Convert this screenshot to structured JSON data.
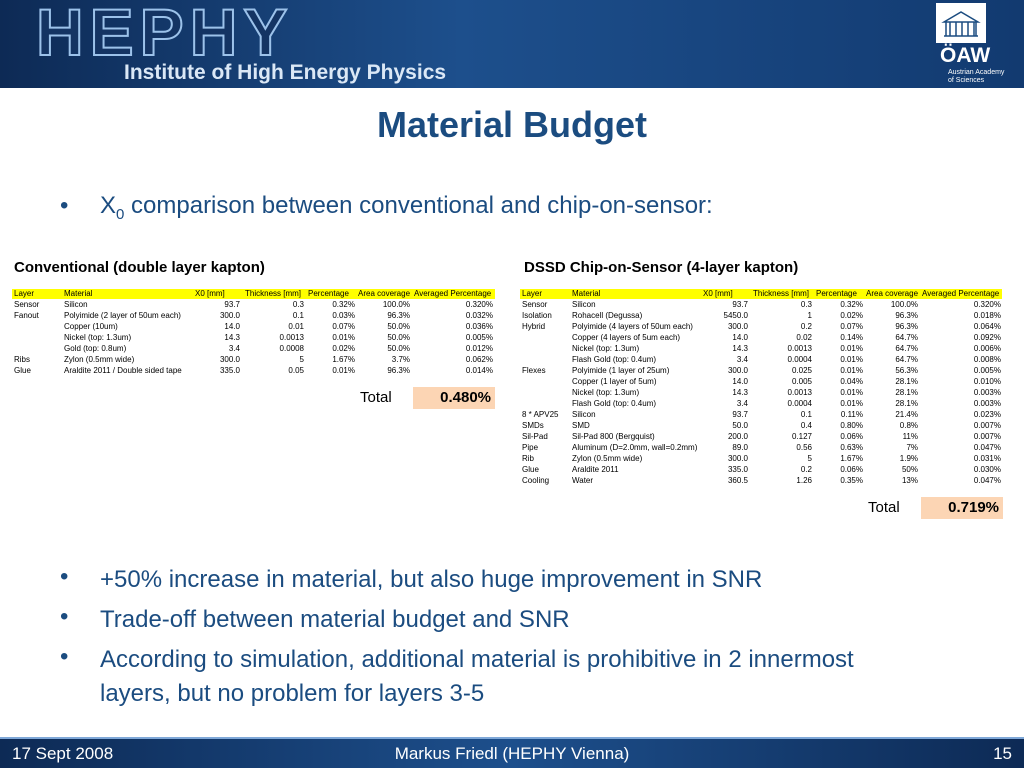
{
  "header": {
    "logo": "HEPHY",
    "subtitle": "Institute of High Energy Physics",
    "org_logo": "ÖAW",
    "org_name_lines": [
      "Austrian Academy",
      "of Sciences"
    ]
  },
  "title": "Material Budget",
  "intro_bullet": {
    "symbol": "X",
    "subscript": "0",
    "text": "comparison between conventional and chip-on-sensor:"
  },
  "tables": [
    {
      "title": "Conventional (double layer kapton)",
      "columns": [
        "Layer",
        "Material",
        "X0 [mm]",
        "Thickness [mm]",
        "Percentage",
        "Area coverage",
        "Averaged Percentage"
      ],
      "rows": [
        [
          "Sensor",
          "Silicon",
          "93.7",
          "0.3",
          "0.32%",
          "100.0%",
          "0.320%"
        ],
        [
          "Fanout",
          "Polyimide (2 layer of 50um each)",
          "300.0",
          "0.1",
          "0.03%",
          "96.3%",
          "0.032%"
        ],
        [
          null,
          "Copper (10um)",
          "14.0",
          "0.01",
          "0.07%",
          "50.0%",
          "0.036%"
        ],
        [
          null,
          "Nickel (top: 1.3um)",
          "14.3",
          "0.0013",
          "0.01%",
          "50.0%",
          "0.005%"
        ],
        [
          null,
          "Gold (top: 0.8um)",
          "3.4",
          "0.0008",
          "0.02%",
          "50.0%",
          "0.012%"
        ],
        [
          "Ribs",
          "Zylon (0.5mm wide)",
          "300.0",
          "5",
          "1.67%",
          "3.7%",
          "0.062%"
        ],
        [
          "Glue",
          "Araldite 2011 / Double sided tape",
          "335.0",
          "0.05",
          "0.01%",
          "96.3%",
          "0.014%"
        ]
      ],
      "total_label": "Total",
      "total_value": "0.480%"
    },
    {
      "title": "DSSD Chip-on-Sensor (4-layer kapton)",
      "columns": [
        "Layer",
        "Material",
        "X0 [mm]",
        "Thickness [mm]",
        "Percentage",
        "Area coverage",
        "Averaged Percentage"
      ],
      "rows": [
        [
          "Sensor",
          "Silicon",
          "93.7",
          "0.3",
          "0.32%",
          "100.0%",
          "0.320%"
        ],
        [
          "Isolation",
          "Rohacell (Degussa)",
          "5450.0",
          "1",
          "0.02%",
          "96.3%",
          "0.018%"
        ],
        [
          "Hybrid",
          "Polyimide (4 layers of 50um each)",
          "300.0",
          "0.2",
          "0.07%",
          "96.3%",
          "0.064%"
        ],
        [
          null,
          "Copper (4 layers of 5um each)",
          "14.0",
          "0.02",
          "0.14%",
          "64.7%",
          "0.092%"
        ],
        [
          null,
          "Nickel (top: 1.3um)",
          "14.3",
          "0.0013",
          "0.01%",
          "64.7%",
          "0.006%"
        ],
        [
          null,
          "Flash Gold (top: 0.4um)",
          "3.4",
          "0.0004",
          "0.01%",
          "64.7%",
          "0.008%"
        ],
        [
          "Flexes",
          "Polyimide (1 layer of 25um)",
          "300.0",
          "0.025",
          "0.01%",
          "56.3%",
          "0.005%"
        ],
        [
          null,
          "Copper (1 layer of 5um)",
          "14.0",
          "0.005",
          "0.04%",
          "28.1%",
          "0.010%"
        ],
        [
          null,
          "Nickel (top: 1.3um)",
          "14.3",
          "0.0013",
          "0.01%",
          "28.1%",
          "0.003%"
        ],
        [
          null,
          "Flash Gold (top: 0.4um)",
          "3.4",
          "0.0004",
          "0.01%",
          "28.1%",
          "0.003%"
        ],
        [
          "8 * APV25",
          "Silicon",
          "93.7",
          "0.1",
          "0.11%",
          "21.4%",
          "0.023%"
        ],
        [
          "SMDs",
          "SMD",
          "50.0",
          "0.4",
          "0.80%",
          "0.8%",
          "0.007%"
        ],
        [
          "Sil-Pad",
          "Sil-Pad 800 (Bergquist)",
          "200.0",
          "0.127",
          "0.06%",
          "11%",
          "0.007%"
        ],
        [
          "Pipe",
          "Aluminum (D=2.0mm, wall=0.2mm)",
          "89.0",
          "0.56",
          "0.63%",
          "7%",
          "0.047%"
        ],
        [
          "Rib",
          "Zylon (0.5mm wide)",
          "300.0",
          "5",
          "1.67%",
          "1.9%",
          "0.031%"
        ],
        [
          "Glue",
          "Araldite 2011",
          "335.0",
          "0.2",
          "0.06%",
          "50%",
          "0.030%"
        ],
        [
          "Cooling",
          "Water",
          "360.5",
          "1.26",
          "0.35%",
          "13%",
          "0.047%"
        ]
      ],
      "total_label": "Total",
      "total_value": "0.719%"
    }
  ],
  "bullets": [
    "+50% increase in material, but also huge improvement in SNR",
    "Trade-off between material budget and SNR",
    "According to simulation, additional material is prohibitive in 2 innermost layers, but no problem for layers 3-5"
  ],
  "footer": {
    "date": "17 Sept 2008",
    "author": "Markus Friedl (HEPHY Vienna)",
    "page": "15"
  }
}
